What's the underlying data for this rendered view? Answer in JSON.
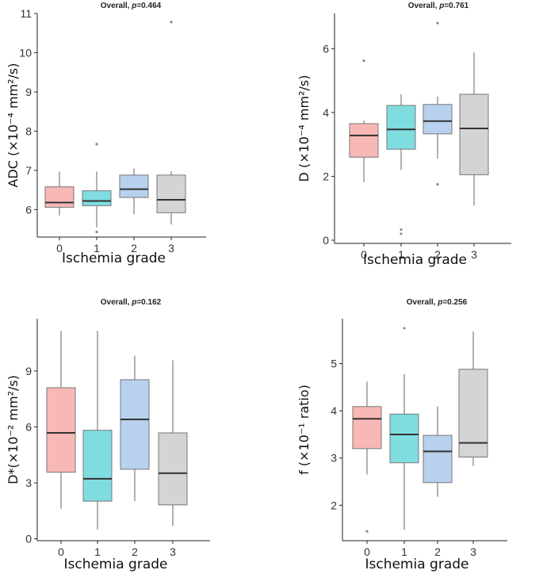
{
  "colors": {
    "g0": "#F8B8B5",
    "g1": "#7FDDE0",
    "g2": "#B7D1EF",
    "g3": "#D4D4D4",
    "outline": "#777777",
    "median": "#333333",
    "whisker": "#999999",
    "outlier": "#888888"
  },
  "chart_data": [
    {
      "type": "box",
      "title": "Overall, p=0.464",
      "title_prefix": "Overall, ",
      "title_p": "p",
      "title_value": "=0.464",
      "xlabel": "Ischemia grade",
      "ylabel": "ADC (×10⁻⁴ mm²/s)",
      "categories": [
        "0",
        "1",
        "2",
        "3"
      ],
      "ylim": [
        5.3,
        11.0
      ],
      "yticks": [
        6,
        7,
        8,
        9,
        10,
        11
      ],
      "boxes": [
        {
          "low": 5.85,
          "q1": 6.06,
          "median": 6.18,
          "q3": 6.58,
          "high": 6.97,
          "outliers": []
        },
        {
          "low": 5.55,
          "q1": 6.1,
          "median": 6.22,
          "q3": 6.48,
          "high": 6.97,
          "outliers": [
            7.67,
            5.43
          ]
        },
        {
          "low": 5.88,
          "q1": 6.31,
          "median": 6.52,
          "q3": 6.88,
          "high": 7.05,
          "outliers": []
        },
        {
          "low": 5.62,
          "q1": 5.92,
          "median": 6.25,
          "q3": 6.88,
          "high": 6.98,
          "outliers": [
            10.78
          ]
        }
      ]
    },
    {
      "type": "box",
      "title": "Overall, p=0.761",
      "title_prefix": "Overall, ",
      "title_p": "p",
      "title_value": "=0.761",
      "xlabel": "Ischemia grade",
      "ylabel": "D (×10⁻⁴ mm²/s)",
      "categories": [
        "0",
        "1",
        "2",
        "3"
      ],
      "ylim": [
        -0.1,
        7.1
      ],
      "yticks": [
        0,
        2,
        4,
        6
      ],
      "boxes": [
        {
          "low": 1.82,
          "q1": 2.6,
          "median": 3.28,
          "q3": 3.65,
          "high": 3.75,
          "outliers": [
            5.62
          ]
        },
        {
          "low": 2.2,
          "q1": 2.85,
          "median": 3.47,
          "q3": 4.22,
          "high": 4.57,
          "outliers": [
            0.33,
            0.2
          ]
        },
        {
          "low": 2.55,
          "q1": 3.33,
          "median": 3.73,
          "q3": 4.25,
          "high": 4.5,
          "outliers": [
            6.8,
            1.75
          ]
        },
        {
          "low": 1.08,
          "q1": 2.05,
          "median": 3.5,
          "q3": 4.57,
          "high": 5.88,
          "outliers": []
        }
      ]
    },
    {
      "type": "box",
      "title": "Overall, p=0.162",
      "title_prefix": "Overall, ",
      "title_p": "p",
      "title_value": "=0.162",
      "xlabel": "Ischemia grade",
      "ylabel": "D*(×10⁻² mm²/s)",
      "categories": [
        "0",
        "1",
        "2",
        "3"
      ],
      "ylim": [
        -0.1,
        11.8
      ],
      "yticks": [
        0,
        3,
        6,
        9
      ],
      "boxes": [
        {
          "low": 1.62,
          "q1": 3.57,
          "median": 5.68,
          "q3": 8.1,
          "high": 11.15,
          "outliers": []
        },
        {
          "low": 0.5,
          "q1": 2.02,
          "median": 3.22,
          "q3": 5.82,
          "high": 11.15,
          "outliers": []
        },
        {
          "low": 2.02,
          "q1": 3.73,
          "median": 6.4,
          "q3": 8.53,
          "high": 9.82,
          "outliers": []
        },
        {
          "low": 0.7,
          "q1": 1.82,
          "median": 3.52,
          "q3": 5.68,
          "high": 9.57,
          "outliers": []
        }
      ]
    },
    {
      "type": "box",
      "title": "Overall, p=0.256",
      "title_prefix": "Overall, ",
      "title_p": "p",
      "title_value": "=0.256",
      "xlabel": "Ischemia grade",
      "ylabel": "f (×10⁻¹ ratio)",
      "categories": [
        "0",
        "1",
        "2",
        "3"
      ],
      "ylim": [
        1.25,
        5.95
      ],
      "yticks": [
        2,
        3,
        4,
        5
      ],
      "boxes": [
        {
          "low": 2.65,
          "q1": 3.2,
          "median": 3.83,
          "q3": 4.09,
          "high": 4.62,
          "outliers": [
            1.45
          ]
        },
        {
          "low": 1.48,
          "q1": 2.9,
          "median": 3.5,
          "q3": 3.93,
          "high": 4.78,
          "outliers": [
            5.75
          ]
        },
        {
          "low": 2.18,
          "q1": 2.48,
          "median": 3.14,
          "q3": 3.48,
          "high": 4.09,
          "outliers": []
        },
        {
          "low": 2.83,
          "q1": 3.02,
          "median": 3.32,
          "q3": 4.88,
          "high": 5.68,
          "outliers": []
        }
      ]
    }
  ]
}
